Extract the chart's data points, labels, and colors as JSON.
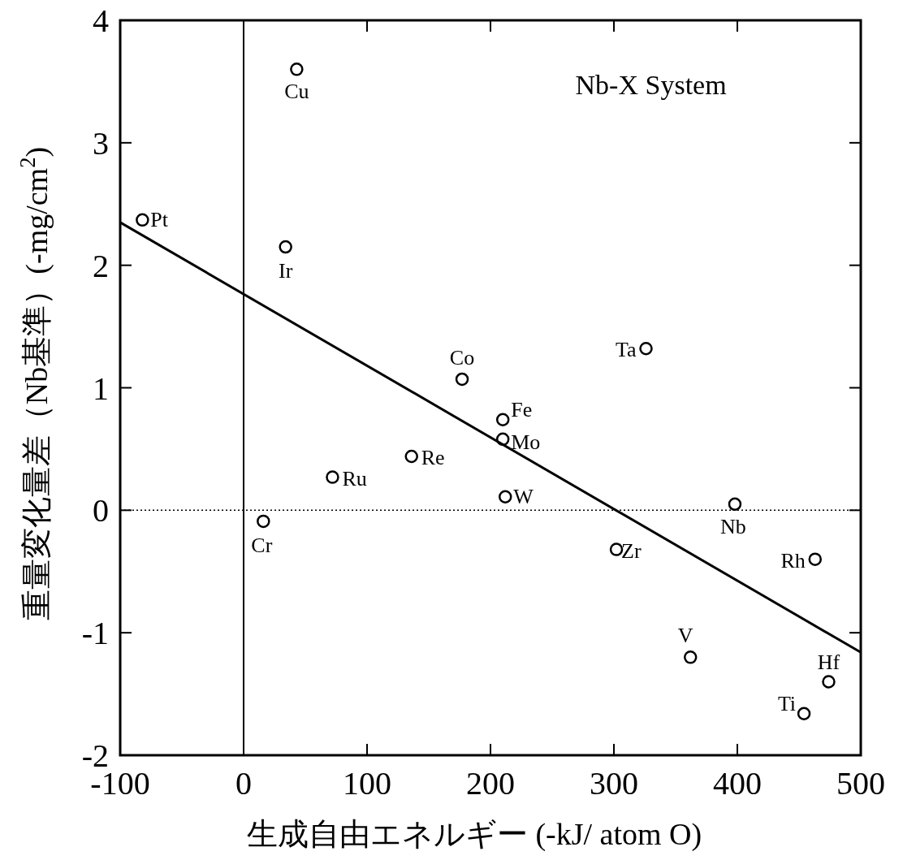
{
  "chart_data": {
    "type": "scatter",
    "title": "Nb-X System",
    "xlabel": "生成自由エネルギー (-kJ/ atom O)",
    "ylabel": "重量変化量差（Nb基準）(-mg/cm$^{2}$)",
    "xlim": [
      -100,
      500
    ],
    "ylim": [
      -2,
      4
    ],
    "xticks": [
      -100,
      0,
      100,
      200,
      300,
      400,
      500
    ],
    "yticks": [
      -2,
      -1,
      0,
      1,
      2,
      3,
      4
    ],
    "series": [
      {
        "marker": "circle",
        "color": "#000000",
        "x": [
          43,
          -82,
          34,
          177,
          326,
          210,
          210,
          136,
          72,
          212,
          398,
          16,
          302,
          463,
          362,
          474,
          454
        ],
        "values": [
          3.6,
          2.37,
          2.15,
          1.07,
          1.32,
          0.74,
          0.58,
          0.44,
          0.27,
          0.11,
          0.05,
          -0.09,
          -0.32,
          -0.4,
          -1.2,
          -1.4,
          -1.66
        ]
      },
      {
        "type": "line",
        "color": "#000000",
        "x": [
          -100,
          500
        ],
        "values": [
          2.35,
          -1.16
        ]
      }
    ],
    "ref_lines": [
      {
        "axis": "x",
        "value": 0,
        "line_style": "solid"
      },
      {
        "axis": "y",
        "value": 0,
        "line_style": "dotted"
      }
    ],
    "annotations": [
      {
        "text": "Cu",
        "x": 43,
        "y": 3.6
      },
      {
        "text": "Pt",
        "x": -82,
        "y": 2.37
      },
      {
        "text": "Ir",
        "x": 34,
        "y": 2.15
      },
      {
        "text": "Co",
        "x": 177,
        "y": 1.07
      },
      {
        "text": "Ta",
        "x": 326,
        "y": 1.32
      },
      {
        "text": "Fe",
        "x": 210,
        "y": 0.74
      },
      {
        "text": "Mo",
        "x": 210,
        "y": 0.58
      },
      {
        "text": "Re",
        "x": 136,
        "y": 0.44
      },
      {
        "text": "Ru",
        "x": 72,
        "y": 0.27
      },
      {
        "text": "W",
        "x": 212,
        "y": 0.11
      },
      {
        "text": "Nb",
        "x": 398,
        "y": 0.05
      },
      {
        "text": "Cr",
        "x": 16,
        "y": -0.09
      },
      {
        "text": "Zr",
        "x": 302,
        "y": -0.32
      },
      {
        "text": "Rh",
        "x": 463,
        "y": -0.4
      },
      {
        "text": "V",
        "x": 362,
        "y": -1.2
      },
      {
        "text": "Hf",
        "x": 474,
        "y": -1.4
      },
      {
        "text": "Ti",
        "x": 454,
        "y": -1.66
      }
    ]
  }
}
